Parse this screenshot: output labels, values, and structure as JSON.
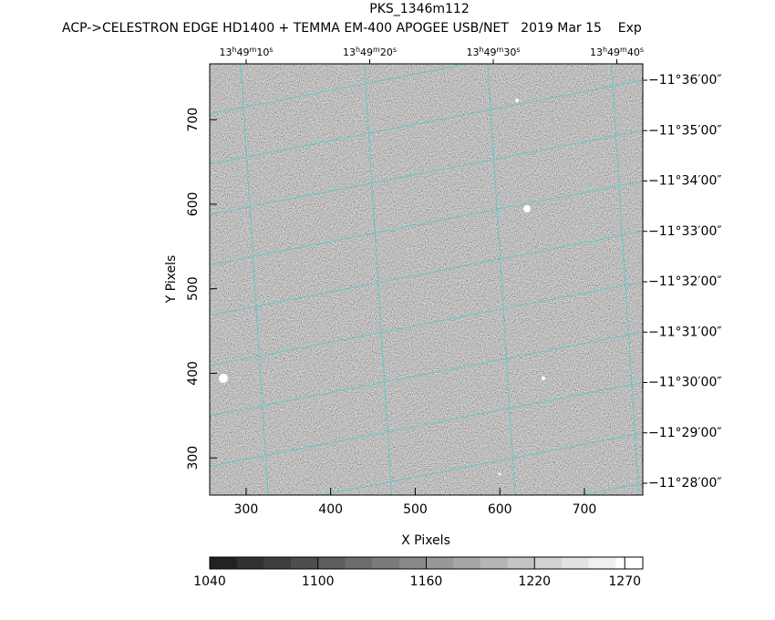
{
  "chart_data": {
    "type": "image",
    "title": "PKS_1346m112",
    "subtitle": "ACP->CELESTRON EDGE HD1400 + TEMMA EM-400 APOGEE USB/NET   2019 Mar 15    Exp",
    "x_label": "X Pixels",
    "y_label": "Y Pixels",
    "xlim": [
      257,
      769
    ],
    "xticks": [
      300,
      400,
      500,
      600,
      700
    ],
    "ylim": [
      256,
      766
    ],
    "yticks": [
      300,
      400,
      500,
      600,
      700
    ],
    "ra_ticks": [
      "13h49m10s",
      "13h49m20s",
      "13h49m30s",
      "13h49m40s"
    ],
    "dec_ticks": [
      "−11°36′00″",
      "−11°35′00″",
      "−11°34′00″",
      "−11°33′00″",
      "−11°32′00″",
      "−11°31′00″",
      "−11°30′00″",
      "−11°29′00″",
      "−11°28′00″"
    ],
    "colorbar": {
      "lim": [
        1040,
        1280
      ],
      "ticks": [
        1040,
        1100,
        1160,
        1220,
        1270
      ]
    }
  }
}
